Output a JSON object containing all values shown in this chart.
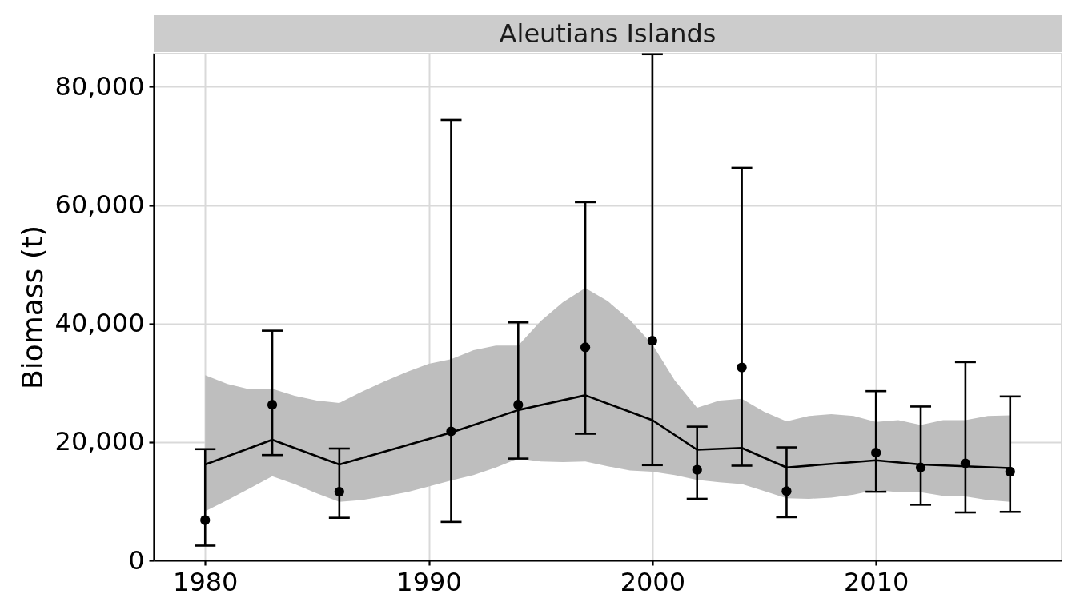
{
  "chart_data": {
    "type": "scatter",
    "title": "Aleutians Islands",
    "ylabel": "Biomass (t)",
    "xlim": [
      1977.7,
      2018.3
    ],
    "xticks": [
      1980,
      1990,
      2000,
      2010
    ],
    "ylim": [
      0,
      85600
    ],
    "yticks": [
      0,
      {
        "value": 20000,
        "label": "20,000"
      },
      {
        "value": 40000,
        "label": "40,000"
      },
      {
        "value": 60000,
        "label": "60,000"
      },
      {
        "value": 80000,
        "label": "80,000"
      }
    ],
    "grid": true,
    "series": [
      {
        "type": "area",
        "color": "#bebebe",
        "x": [
          1980,
          1981,
          1982,
          1983,
          1984,
          1985,
          1986,
          1987,
          1988,
          1989,
          1990,
          1991,
          1992,
          1993,
          1994,
          1995,
          1996,
          1997,
          1998,
          1999,
          2000,
          2001,
          2002,
          2003,
          2004,
          2005,
          2006,
          2007,
          2008,
          2009,
          2010,
          2011,
          2012,
          2013,
          2014,
          2015,
          2016
        ],
        "values": [
          null,
          null,
          null,
          null,
          null,
          null,
          null,
          null,
          null,
          null,
          null,
          null,
          null,
          null,
          null,
          null,
          null,
          null,
          null,
          null,
          null,
          null,
          null,
          null,
          null,
          null,
          null,
          null,
          null,
          null,
          null,
          null,
          null,
          null,
          null,
          null,
          null
        ],
        "lower": [
          8300,
          10200,
          12200,
          14200,
          12900,
          11300,
          9900,
          10200,
          10800,
          11500,
          12500,
          13500,
          14400,
          15700,
          17200,
          16700,
          16600,
          16700,
          15900,
          15200,
          15000,
          14400,
          13600,
          13200,
          12900,
          11700,
          10500,
          10400,
          10600,
          11100,
          11900,
          11500,
          11500,
          10900,
          10800,
          10200,
          9900
        ],
        "upper": [
          31300,
          29800,
          28900,
          29000,
          27800,
          27000,
          26600,
          28500,
          30200,
          31800,
          33200,
          34000,
          35500,
          36300,
          36300,
          40400,
          43600,
          46000,
          43800,
          40600,
          36500,
          30400,
          25800,
          27000,
          27300,
          25100,
          23500,
          24400,
          24700,
          24400,
          23400,
          23700,
          22900,
          23700,
          23700,
          24400,
          24500
        ]
      },
      {
        "type": "line",
        "color": "#000000",
        "x": [
          1980,
          1983,
          1986,
          1991,
          1994,
          1997,
          2000,
          2002,
          2004,
          2006,
          2010,
          2012,
          2014,
          2016
        ],
        "values": [
          16200,
          20400,
          16200,
          21600,
          25400,
          27900,
          23700,
          18700,
          19000,
          15700,
          16900,
          16200,
          15900,
          15600
        ]
      },
      {
        "color": "#000000",
        "marker": "circle",
        "x": [
          1980,
          1983,
          1986,
          1991,
          1994,
          1997,
          2000,
          2002,
          2004,
          2006,
          2010,
          2012,
          2014,
          2016
        ],
        "values": [
          6800,
          26300,
          11600,
          21800,
          26300,
          36000,
          37100,
          15300,
          32600,
          11700,
          18200,
          15700,
          16400,
          15000
        ],
        "errors": [
          [
            2500,
            18800
          ],
          [
            17800,
            38800
          ],
          [
            7200,
            18900
          ],
          [
            6500,
            74400
          ],
          [
            17200,
            40200
          ],
          [
            21400,
            60500
          ],
          [
            16100,
            85500
          ],
          [
            10400,
            22600
          ],
          [
            16000,
            66300
          ],
          [
            7300,
            19100
          ],
          [
            11600,
            28600
          ],
          [
            9400,
            26000
          ],
          [
            8100,
            33500
          ],
          [
            8200,
            27700
          ]
        ]
      }
    ]
  }
}
